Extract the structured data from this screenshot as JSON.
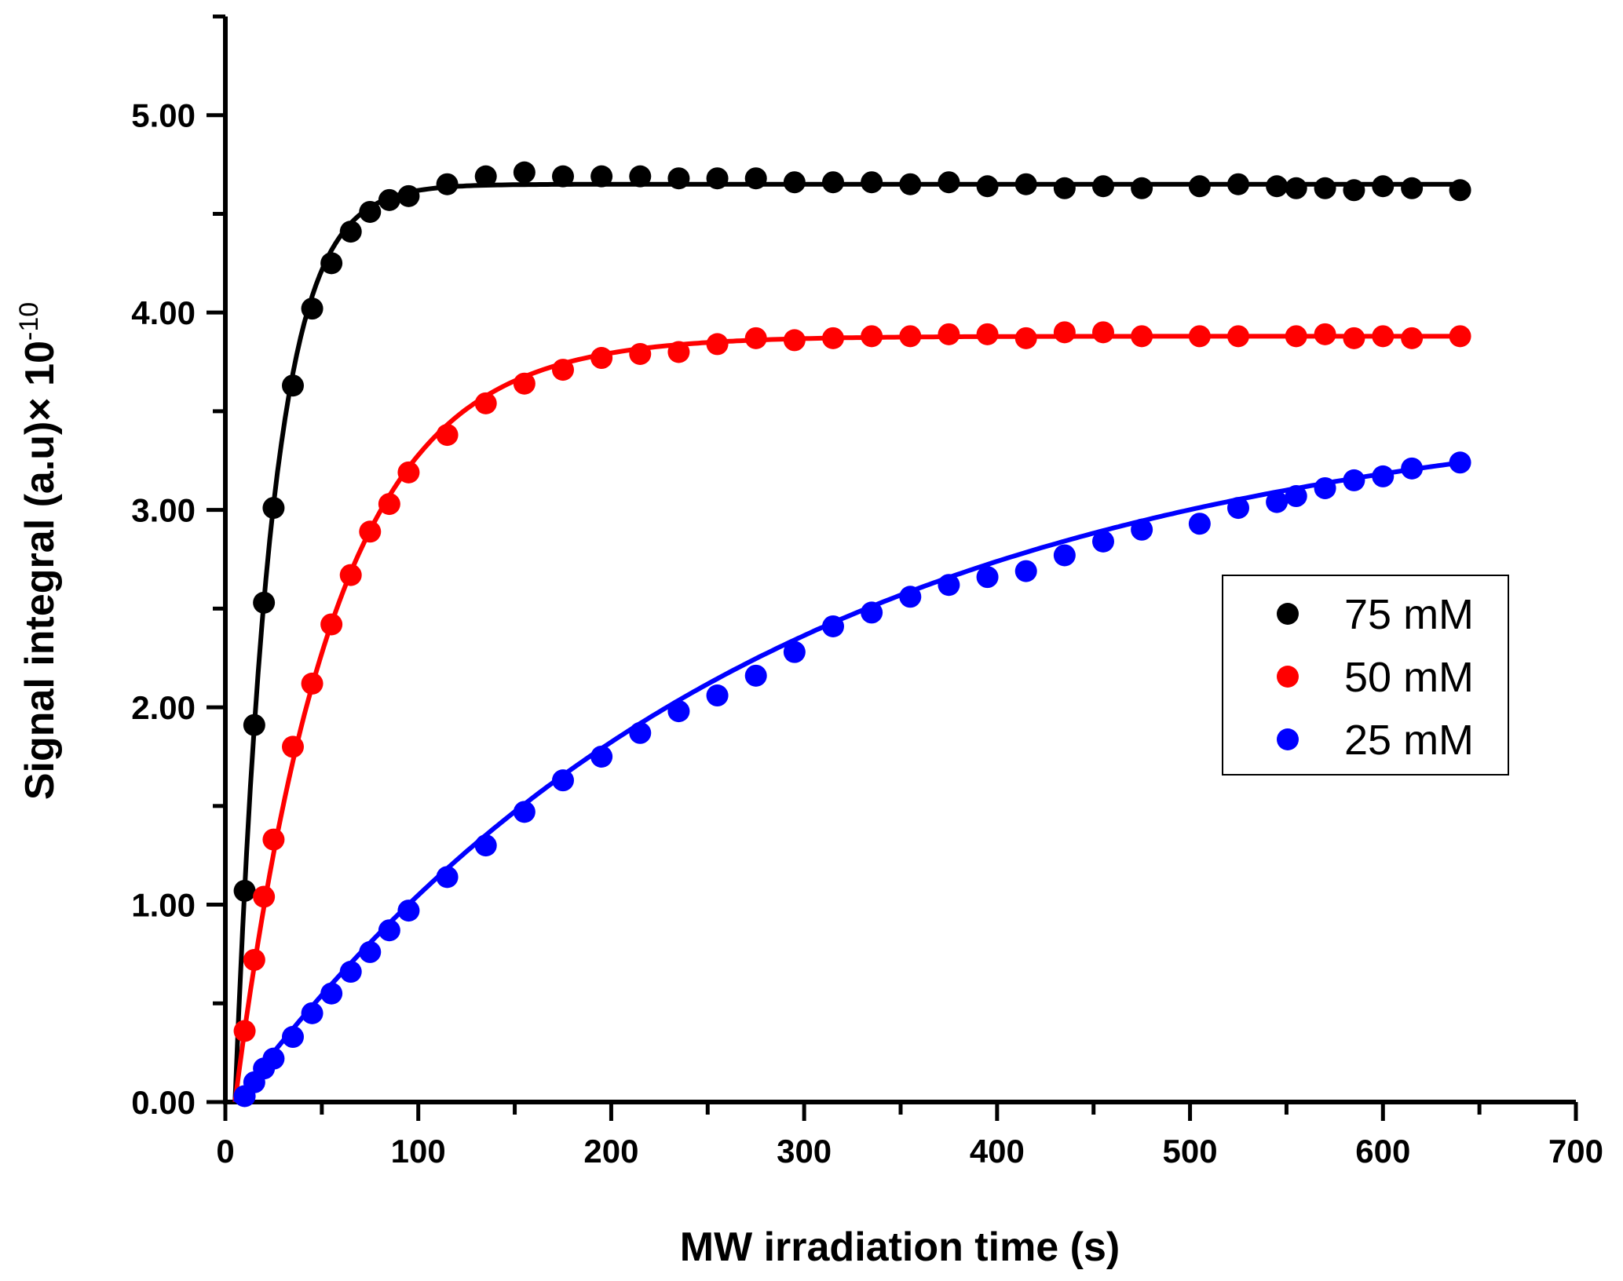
{
  "chart_data": {
    "type": "scatter",
    "title": "",
    "xlabel": "MW irradiation time (s)",
    "ylabel": "Signal integral (a.u)× 10",
    "ylabel_exponent": "-10",
    "xlim": [
      0,
      700
    ],
    "ylim": [
      0,
      5.5
    ],
    "xticks": [
      0,
      100,
      200,
      300,
      400,
      500,
      600,
      700
    ],
    "xtick_labels": [
      "0",
      "100",
      "200",
      "300",
      "400",
      "500",
      "600",
      "700"
    ],
    "yticks": [
      0,
      1,
      2,
      3,
      4,
      5
    ],
    "ytick_labels": [
      "0.00",
      "1.00",
      "2.00",
      "3.00",
      "4.00",
      "5.00"
    ],
    "grid": false,
    "legend_position": "right",
    "series": [
      {
        "name": "75 mM",
        "color": "#000000",
        "fit": {
          "model": "A*(1-exp(-(t-t0)/T))",
          "A": 4.65,
          "t0": 5,
          "T": 19
        },
        "x": [
          10,
          15,
          20,
          25,
          35,
          45,
          55,
          65,
          75,
          85,
          95,
          115,
          135,
          155,
          175,
          195,
          215,
          235,
          255,
          275,
          295,
          315,
          335,
          355,
          375,
          395,
          415,
          435,
          455,
          475,
          505,
          525,
          545,
          555,
          570,
          585,
          600,
          615,
          640
        ],
        "y": [
          1.07,
          1.91,
          2.53,
          3.01,
          3.63,
          4.02,
          4.25,
          4.41,
          4.51,
          4.57,
          4.59,
          4.65,
          4.69,
          4.71,
          4.69,
          4.69,
          4.69,
          4.68,
          4.68,
          4.68,
          4.66,
          4.66,
          4.66,
          4.65,
          4.66,
          4.64,
          4.65,
          4.63,
          4.64,
          4.63,
          4.64,
          4.65,
          4.64,
          4.63,
          4.63,
          4.62,
          4.64,
          4.63,
          4.62
        ]
      },
      {
        "name": "50 mM",
        "color": "#ff0000",
        "fit": {
          "model": "A*(1-exp(-(t-t0)/T))",
          "A": 3.88,
          "t0": 5,
          "T": 51
        },
        "x": [
          10,
          15,
          20,
          25,
          35,
          45,
          55,
          65,
          75,
          85,
          95,
          115,
          135,
          155,
          175,
          195,
          215,
          235,
          255,
          275,
          295,
          315,
          335,
          355,
          375,
          395,
          415,
          435,
          455,
          475,
          505,
          525,
          555,
          570,
          585,
          600,
          615,
          640
        ],
        "y": [
          0.36,
          0.72,
          1.04,
          1.33,
          1.8,
          2.12,
          2.42,
          2.67,
          2.89,
          3.03,
          3.19,
          3.38,
          3.54,
          3.64,
          3.71,
          3.77,
          3.79,
          3.8,
          3.84,
          3.87,
          3.86,
          3.87,
          3.88,
          3.88,
          3.89,
          3.89,
          3.87,
          3.9,
          3.9,
          3.88,
          3.88,
          3.88,
          3.88,
          3.89,
          3.87,
          3.88,
          3.87,
          3.88
        ]
      },
      {
        "name": "25 mM",
        "color": "#0000ff",
        "fit": {
          "model": "A*(1-exp(-(t-t0)/T))",
          "A": 3.6,
          "t0": 5,
          "T": 276
        },
        "x": [
          10,
          15,
          20,
          25,
          35,
          45,
          55,
          65,
          75,
          85,
          95,
          115,
          135,
          155,
          175,
          195,
          215,
          235,
          255,
          275,
          295,
          315,
          335,
          355,
          375,
          395,
          415,
          435,
          455,
          475,
          505,
          525,
          545,
          555,
          570,
          585,
          600,
          615,
          640
        ],
        "y": [
          0.03,
          0.1,
          0.17,
          0.22,
          0.33,
          0.45,
          0.55,
          0.66,
          0.76,
          0.87,
          0.97,
          1.14,
          1.3,
          1.47,
          1.63,
          1.75,
          1.87,
          1.98,
          2.06,
          2.16,
          2.28,
          2.41,
          2.48,
          2.56,
          2.62,
          2.66,
          2.69,
          2.77,
          2.84,
          2.9,
          2.93,
          3.01,
          3.04,
          3.07,
          3.11,
          3.15,
          3.17,
          3.21,
          3.24
        ]
      }
    ]
  }
}
